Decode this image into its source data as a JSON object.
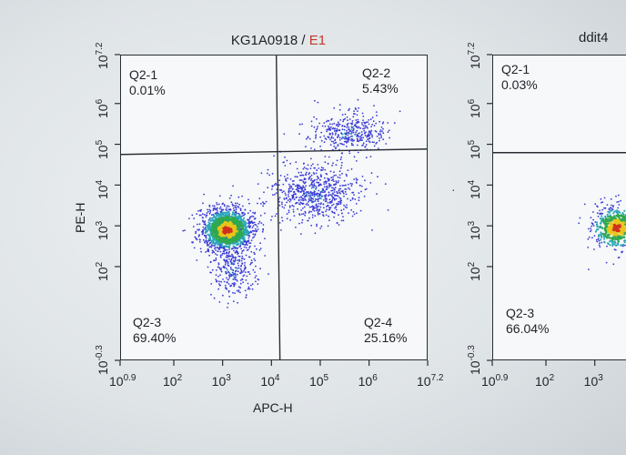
{
  "header": {
    "left_title_sample": "KG1A0918",
    "left_title_sep": "/",
    "left_title_gate": "E1",
    "right_title_partial": "ddit4"
  },
  "colors": {
    "gate_text": "#c0392b",
    "low_density": "#3b3bd6",
    "mid_density": "#2fa84f",
    "high_density": "#e8c51a",
    "peak_density": "#d0311f"
  },
  "chart_data": [
    {
      "type": "scatter",
      "subtype": "flow-cytometry-quadrant-density",
      "title": "KG1A0918 / E1",
      "xlabel": "APC-H",
      "ylabel": "PE-H",
      "xscale": "log",
      "yscale": "log",
      "xlim": [
        7.94,
        15849000
      ],
      "ylim": [
        0.5,
        15849000
      ],
      "x_ticks": [
        "10^0.9",
        "10^2",
        "10^3",
        "10^4",
        "10^5",
        "10^6",
        "10^7.2"
      ],
      "y_ticks": [
        "10^-0.3",
        "10^2",
        "10^3",
        "10^4",
        "10^5",
        "10^6",
        "10^7.2"
      ],
      "x_gate_log": 4.1,
      "y_gate_log": 4.75,
      "quadrants": [
        {
          "name": "Q2-1",
          "percent": "0.01%"
        },
        {
          "name": "Q2-2",
          "percent": "5.43%"
        },
        {
          "name": "Q2-3",
          "percent": "69.40%"
        },
        {
          "name": "Q2-4",
          "percent": "25.16%"
        }
      ],
      "populations_log10": [
        {
          "cx": 3.1,
          "cy": 2.9,
          "sx": 0.28,
          "sy": 0.28,
          "n": 1400,
          "dense": true
        },
        {
          "cx": 4.9,
          "cy": 3.8,
          "sx": 0.45,
          "sy": 0.35,
          "n": 700,
          "dense": false
        },
        {
          "cx": 5.6,
          "cy": 5.3,
          "sx": 0.4,
          "sy": 0.25,
          "n": 380,
          "dense": false
        },
        {
          "cx": 3.2,
          "cy": 1.9,
          "sx": 0.25,
          "sy": 0.35,
          "n": 260,
          "dense": false
        }
      ]
    },
    {
      "type": "scatter",
      "subtype": "flow-cytometry-quadrant-density",
      "title": "ddit4",
      "xlabel": "",
      "ylabel": "",
      "xscale": "log",
      "yscale": "log",
      "x_ticks": [
        "10^0.9",
        "10^2",
        "10^3"
      ],
      "y_ticks": [
        "10^-0.3",
        "10^2",
        "10^3",
        "10^4",
        "10^5",
        "10^6",
        "10^7.2"
      ],
      "y_gate_log": 4.75,
      "quadrants": [
        {
          "name": "Q2-1",
          "percent": "0.03%"
        },
        {
          "name": "Q2-3",
          "percent": "66.04%"
        }
      ],
      "populations_log10": [
        {
          "cx": 3.45,
          "cy": 2.95,
          "sx": 0.28,
          "sy": 0.28,
          "n": 500,
          "dense": true
        }
      ]
    }
  ]
}
